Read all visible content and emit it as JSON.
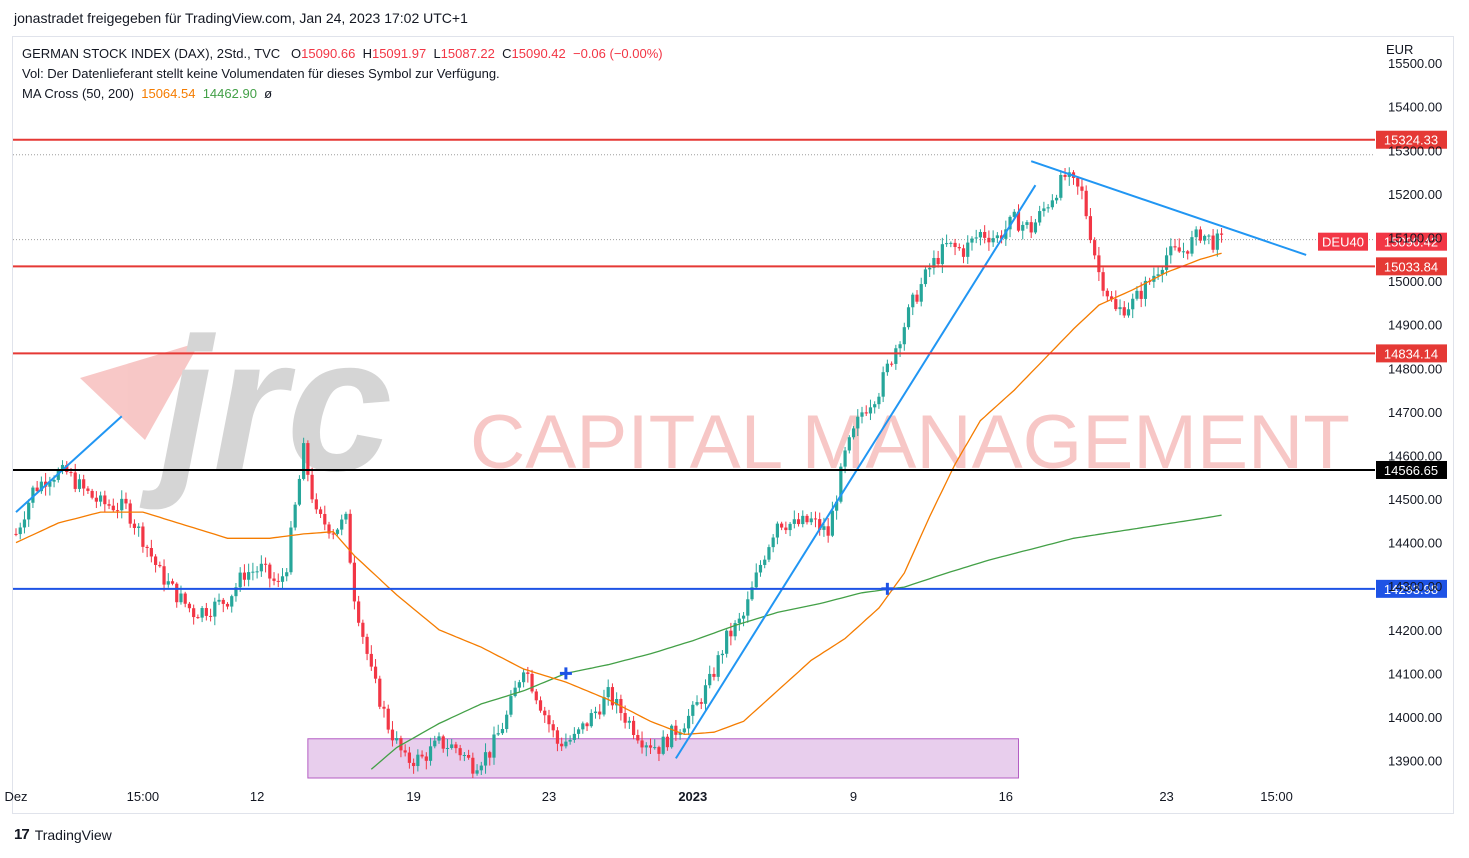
{
  "header": {
    "published": "jonastradet freigegeben für TradingView.com, Jan 24, 2023 17:02 UTC+1"
  },
  "legend": {
    "symbol": "GERMAN STOCK INDEX (DAX), 2Std., TVC",
    "o_label": "O",
    "o_value": "15090.66",
    "h_label": "H",
    "h_value": "15091.97",
    "l_label": "L",
    "l_value": "15087.22",
    "c_label": "C",
    "c_value": "15090.42",
    "change": "−0.06 (−0.00%)",
    "vol_text": "Vol: Der Datenlieferant stellt keine Volumendaten für dieses Symbol zur Verfügung.",
    "ma_label": "MA Cross (50, 200)",
    "ma50_value": "15064.54",
    "ma200_value": "14462.90",
    "ma_flag": "ø"
  },
  "currency": "EUR",
  "brand": {
    "name": "TradingView",
    "logo": "17"
  },
  "watermark": {
    "logo": "jrc",
    "text": "CAPITAL MANAGEMENT"
  },
  "colors": {
    "up": "#26a69a",
    "down": "#f23645",
    "ma50": "#f57c00",
    "ma200": "#43a047",
    "trend": "#2196f3",
    "red_level": "#e53935",
    "black_level": "#000000",
    "blue_level": "#1e53e5",
    "zone_fill": "#e1bee7",
    "zone_stroke": "#9c27b0"
  },
  "chart_data": {
    "type": "candlestick",
    "y_axis": {
      "ylim": [
        13860,
        15560
      ],
      "ticks": [
        15500,
        15400,
        15300,
        15200,
        15100,
        15000,
        14900,
        14800,
        14700,
        14600,
        14500,
        14400,
        14300,
        14200,
        14100,
        14000,
        13900
      ],
      "tick_labels": [
        "15500.00",
        "15400.00",
        "15300.00",
        "15200.00",
        "15100.00",
        "15000.00",
        "14900.00",
        "14800.00",
        "14700.00",
        "14600.00",
        "14500.00",
        "14400.00",
        "14300.00",
        "14200.00",
        "14100.00",
        "14000.00",
        "13900.00"
      ]
    },
    "x_axis": {
      "n_bars": 296,
      "ticks": [
        {
          "bar": 0,
          "label": "Dez"
        },
        {
          "bar": 30,
          "label": "15:00"
        },
        {
          "bar": 57,
          "label": "12"
        },
        {
          "bar": 94,
          "label": "19"
        },
        {
          "bar": 126,
          "label": "23"
        },
        {
          "bar": 160,
          "label": "2023"
        },
        {
          "bar": 198,
          "label": "9"
        },
        {
          "bar": 234,
          "label": "16"
        },
        {
          "bar": 272,
          "label": "23"
        },
        {
          "bar": 298,
          "label": "15:00"
        }
      ]
    },
    "horizontal_levels": [
      {
        "value": 15324.33,
        "label": "15324.33",
        "color": "#e53935"
      },
      {
        "value": 15033.84,
        "label": "15033.84",
        "color": "#e53935"
      },
      {
        "value": 14834.14,
        "label": "14834.14",
        "color": "#e53935"
      },
      {
        "value": 14566.65,
        "label": "14566.65",
        "color": "#000000"
      },
      {
        "value": 14293.98,
        "label": "14293.98",
        "color": "#1e53e5"
      }
    ],
    "last_price": {
      "symbol": "DEU40",
      "value": 15090.42,
      "label": "15090.42"
    },
    "anchors": [
      [
        0,
        14420
      ],
      [
        4,
        14520
      ],
      [
        8,
        14555
      ],
      [
        12,
        14560
      ],
      [
        16,
        14520
      ],
      [
        20,
        14490
      ],
      [
        26,
        14480
      ],
      [
        30,
        14410
      ],
      [
        34,
        14330
      ],
      [
        38,
        14280
      ],
      [
        42,
        14240
      ],
      [
        46,
        14250
      ],
      [
        50,
        14270
      ],
      [
        54,
        14330
      ],
      [
        58,
        14340
      ],
      [
        62,
        14300
      ],
      [
        64,
        14350
      ],
      [
        68,
        14610
      ],
      [
        71,
        14460
      ],
      [
        75,
        14430
      ],
      [
        78,
        14450
      ],
      [
        80,
        14280
      ],
      [
        84,
        14100
      ],
      [
        88,
        13980
      ],
      [
        92,
        13900
      ],
      [
        96,
        13905
      ],
      [
        100,
        13940
      ],
      [
        104,
        13930
      ],
      [
        108,
        13890
      ],
      [
        112,
        13920
      ],
      [
        116,
        14000
      ],
      [
        120,
        14120
      ],
      [
        124,
        14030
      ],
      [
        128,
        13940
      ],
      [
        132,
        13950
      ],
      [
        136,
        14000
      ],
      [
        140,
        14050
      ],
      [
        144,
        14000
      ],
      [
        148,
        13950
      ],
      [
        152,
        13930
      ],
      [
        156,
        13970
      ],
      [
        160,
        14010
      ],
      [
        164,
        14080
      ],
      [
        168,
        14180
      ],
      [
        172,
        14230
      ],
      [
        176,
        14350
      ],
      [
        180,
        14450
      ],
      [
        184,
        14440
      ],
      [
        188,
        14450
      ],
      [
        192,
        14420
      ],
      [
        196,
        14600
      ],
      [
        200,
        14700
      ],
      [
        204,
        14750
      ],
      [
        208,
        14850
      ],
      [
        212,
        14950
      ],
      [
        216,
        15030
      ],
      [
        220,
        15080
      ],
      [
        224,
        15070
      ],
      [
        228,
        15110
      ],
      [
        232,
        15100
      ],
      [
        236,
        15140
      ],
      [
        240,
        15120
      ],
      [
        244,
        15180
      ],
      [
        248,
        15240
      ],
      [
        252,
        15200
      ],
      [
        256,
        15020
      ],
      [
        260,
        14930
      ],
      [
        264,
        14950
      ],
      [
        268,
        15000
      ],
      [
        272,
        15060
      ],
      [
        276,
        15070
      ],
      [
        280,
        15110
      ],
      [
        283,
        15090
      ],
      [
        285,
        15090
      ]
    ],
    "ma50_anchors": [
      [
        0,
        14400
      ],
      [
        10,
        14445
      ],
      [
        20,
        14470
      ],
      [
        30,
        14470
      ],
      [
        40,
        14440
      ],
      [
        50,
        14410
      ],
      [
        60,
        14410
      ],
      [
        68,
        14420
      ],
      [
        75,
        14425
      ],
      [
        80,
        14370
      ],
      [
        90,
        14280
      ],
      [
        100,
        14200
      ],
      [
        110,
        14160
      ],
      [
        120,
        14110
      ],
      [
        130,
        14080
      ],
      [
        140,
        14040
      ],
      [
        150,
        13990
      ],
      [
        158,
        13960
      ],
      [
        165,
        13965
      ],
      [
        172,
        13990
      ],
      [
        180,
        14060
      ],
      [
        188,
        14130
      ],
      [
        196,
        14180
      ],
      [
        204,
        14250
      ],
      [
        210,
        14330
      ],
      [
        216,
        14460
      ],
      [
        222,
        14580
      ],
      [
        228,
        14680
      ],
      [
        236,
        14750
      ],
      [
        244,
        14830
      ],
      [
        250,
        14890
      ],
      [
        256,
        14945
      ],
      [
        264,
        14980
      ],
      [
        272,
        15020
      ],
      [
        280,
        15050
      ],
      [
        285,
        15064
      ]
    ],
    "ma200_anchors": [
      [
        84,
        13880
      ],
      [
        90,
        13930
      ],
      [
        100,
        13985
      ],
      [
        110,
        14030
      ],
      [
        120,
        14060
      ],
      [
        130,
        14100
      ],
      [
        140,
        14120
      ],
      [
        150,
        14145
      ],
      [
        160,
        14175
      ],
      [
        170,
        14210
      ],
      [
        180,
        14240
      ],
      [
        190,
        14260
      ],
      [
        200,
        14285
      ],
      [
        210,
        14298
      ],
      [
        220,
        14330
      ],
      [
        230,
        14360
      ],
      [
        240,
        14385
      ],
      [
        250,
        14410
      ],
      [
        260,
        14425
      ],
      [
        270,
        14440
      ],
      [
        280,
        14455
      ],
      [
        285,
        14463
      ]
    ],
    "trendlines": [
      {
        "from": [
          0,
          14470
        ],
        "to": [
          25,
          14690
        ]
      },
      {
        "from": [
          156,
          13905
        ],
        "to": [
          241,
          15220
        ]
      },
      {
        "from": [
          240,
          15275
        ],
        "to": [
          305,
          15060
        ]
      }
    ],
    "cross_markers": [
      {
        "bar": 130,
        "value": 14100
      },
      {
        "bar": 206,
        "value": 14294
      }
    ],
    "zone": {
      "from_bar": 69,
      "to_bar": 237,
      "top": 13950,
      "bottom": 13860
    }
  }
}
